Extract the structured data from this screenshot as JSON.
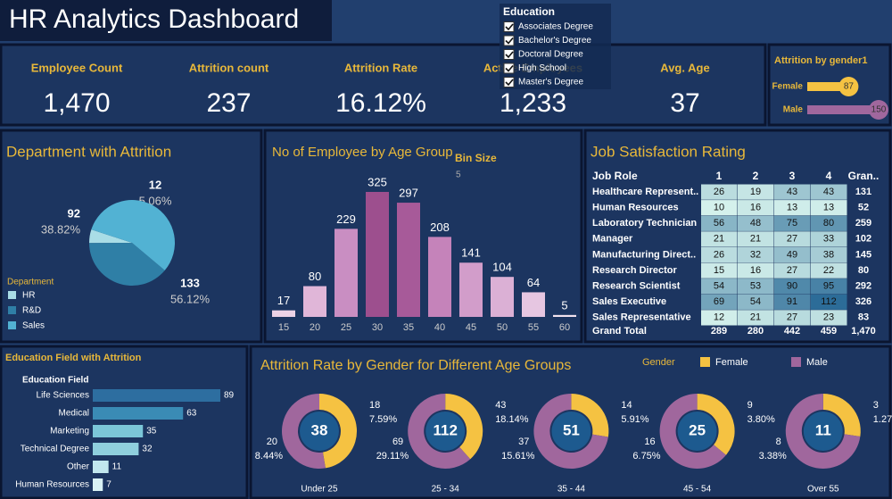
{
  "header": {
    "title": "HR Analytics Dashboard"
  },
  "filter": {
    "title": "Education",
    "options": [
      "Associates Degree",
      "Bachelor's Degree",
      "Doctoral Degree",
      "High School",
      "Master's Degree"
    ]
  },
  "kpis": [
    {
      "label": "Employee Count",
      "value": "1,470"
    },
    {
      "label": "Attrition count",
      "value": "237"
    },
    {
      "label": "Attrition Rate",
      "value": "16.12%"
    },
    {
      "label": "Active Employees",
      "value": "1,233"
    },
    {
      "label": "Avg. Age",
      "value": "37"
    }
  ],
  "chart_data": [
    {
      "type": "bar",
      "orientation": "horizontal",
      "title": "Attrition by gender1",
      "categories": [
        "Female",
        "Male"
      ],
      "values": [
        87,
        150
      ],
      "colors": [
        "#f5c242",
        "#a0679d"
      ]
    },
    {
      "type": "pie",
      "title": "Department with Attrition",
      "legend_title": "Department",
      "categories": [
        "HR",
        "R&D",
        "Sales"
      ],
      "values": [
        12,
        92,
        133
      ],
      "percent_labels": [
        "5.06%",
        "38.82%",
        "56.12%"
      ],
      "colors": [
        "#a9dde6",
        "#2f7fa6",
        "#52b2d3"
      ]
    },
    {
      "type": "bar",
      "title": "No of Employee by Age Group",
      "bin_size_label": "Bin Size",
      "bin_size": 5,
      "categories": [
        "15",
        "20",
        "25",
        "30",
        "35",
        "40",
        "45",
        "50",
        "55",
        "60"
      ],
      "values": [
        17,
        80,
        229,
        325,
        297,
        208,
        141,
        104,
        64,
        5
      ],
      "colors": [
        "#ecd2e6",
        "#e0b6d8",
        "#c98ec2",
        "#9d4f8e",
        "#a75a99",
        "#c583ba",
        "#d29dca",
        "#dbb0d5",
        "#e6c6e1",
        "#f2e2ee"
      ]
    },
    {
      "type": "heatmap",
      "title": "Job Satisfaction Rating",
      "row_header": "Job Role",
      "columns": [
        "1",
        "2",
        "3",
        "4"
      ],
      "total_label": "Gran..",
      "rows": [
        "Healthcare Represent..",
        "Human Resources",
        "Laboratory Technician",
        "Manager",
        "Manufacturing Direct..",
        "Research Director",
        "Research Scientist",
        "Sales Executive",
        "Sales Representative"
      ],
      "values": [
        [
          26,
          19,
          43,
          43
        ],
        [
          10,
          16,
          13,
          13
        ],
        [
          56,
          48,
          75,
          80
        ],
        [
          21,
          21,
          27,
          33
        ],
        [
          26,
          32,
          49,
          38
        ],
        [
          15,
          16,
          27,
          22
        ],
        [
          54,
          53,
          90,
          95
        ],
        [
          69,
          54,
          91,
          112
        ],
        [
          12,
          21,
          27,
          23
        ]
      ],
      "row_totals": [
        131,
        52,
        259,
        102,
        145,
        80,
        292,
        326,
        83
      ],
      "grand_total_label": "Grand Total",
      "column_totals": [
        289,
        280,
        442,
        459
      ],
      "grand_total": "1,470",
      "color_range": [
        "#d4f1ec",
        "#2c6c98"
      ]
    },
    {
      "type": "bar",
      "orientation": "horizontal",
      "title": "Education Field with Attrition",
      "axis_label": "Education Field",
      "categories": [
        "Life Sciences",
        "Medical",
        "Marketing",
        "Technical Degree",
        "Other",
        "Human Resources"
      ],
      "values": [
        89,
        63,
        35,
        32,
        11,
        7
      ],
      "colors": [
        "#2d6ea0",
        "#3a8bb5",
        "#7bc6d8",
        "#8fcfdd",
        "#c1e7ee",
        "#d9f2f5"
      ]
    },
    {
      "type": "donut",
      "title": "Attrition Rate by Gender  for Different Age Groups",
      "legend_title": "Gender",
      "categories": [
        "Under 25",
        "25 - 34",
        "35 - 44",
        "45 - 54",
        "Over 55"
      ],
      "totals": [
        38,
        112,
        51,
        25,
        11
      ],
      "series": [
        {
          "name": "Female",
          "color": "#f5c242",
          "values": [
            18,
            43,
            14,
            9,
            3
          ],
          "percent_labels": [
            "7.59%",
            "18.14%",
            "5.91%",
            "3.80%",
            "1.27%"
          ]
        },
        {
          "name": "Male",
          "color": "#a0679d",
          "values": [
            20,
            69,
            37,
            16,
            8
          ],
          "percent_labels": [
            "8.44%",
            "29.11%",
            "15.61%",
            "6.75%",
            "3.38%"
          ]
        }
      ]
    }
  ]
}
